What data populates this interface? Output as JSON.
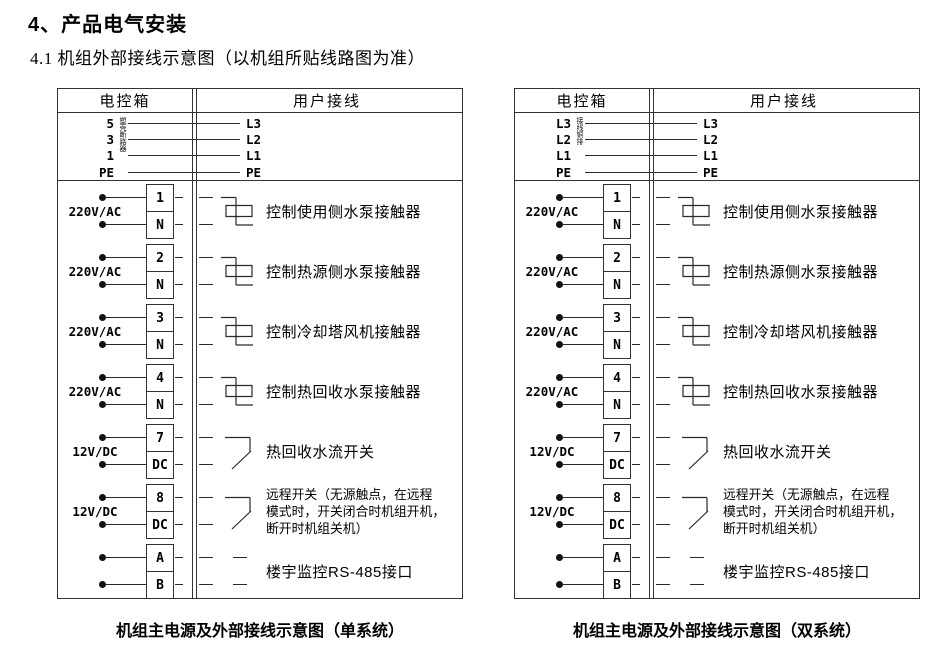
{
  "page": {
    "title": "4、产品电气安装",
    "subtitle": "4.1 机组外部接线示意图（以机组所贴线路图为准）"
  },
  "colors": {
    "line": "#2a2a2a",
    "text": "#000000",
    "background": "#ffffff"
  },
  "diagrams": [
    {
      "name": "single-system",
      "header": {
        "left": "电控箱",
        "right": "用户接线"
      },
      "power_section": {
        "vertical_note": "塑壳断路器",
        "rows": [
          {
            "box_terminal": "5",
            "user_terminal": "L3"
          },
          {
            "box_terminal": "3",
            "user_terminal": "L2"
          },
          {
            "box_terminal": "1",
            "user_terminal": "L1"
          },
          {
            "box_terminal": "PE",
            "user_terminal": "PE"
          }
        ]
      },
      "terminal_rows": [
        {
          "voltage": "220V/AC",
          "terminals": [
            "1",
            "N"
          ],
          "symbol": "contactor",
          "label": "控制使用侧水泵接触器"
        },
        {
          "voltage": "220V/AC",
          "terminals": [
            "2",
            "N"
          ],
          "symbol": "contactor",
          "label": "控制热源侧水泵接触器"
        },
        {
          "voltage": "220V/AC",
          "terminals": [
            "3",
            "N"
          ],
          "symbol": "contactor",
          "label": "控制冷却塔风机接触器"
        },
        {
          "voltage": "220V/AC",
          "terminals": [
            "4",
            "N"
          ],
          "symbol": "contactor",
          "label": "控制热回收水泵接触器"
        },
        {
          "voltage": "12V/DC",
          "terminals": [
            "7",
            "DC"
          ],
          "symbol": "switch",
          "label": "热回收水流开关"
        },
        {
          "voltage": "12V/DC",
          "terminals": [
            "8",
            "DC"
          ],
          "symbol": "switch",
          "label_lines": [
            "远程开关（无源触点，在远程",
            "模式时，开关闭合时机组开机，",
            "断开时机组关机）"
          ]
        },
        {
          "voltage": "",
          "terminals": [
            "A",
            "B"
          ],
          "symbol": "none",
          "label": "楼宇监控RS-485接口"
        }
      ],
      "caption": "机组主电源及外部接线示意图（单系统）"
    },
    {
      "name": "dual-system",
      "header": {
        "left": "电控箱",
        "right": "用户接线"
      },
      "power_section": {
        "vertical_note": "接线铜排",
        "rows": [
          {
            "box_terminal": "L3",
            "user_terminal": "L3"
          },
          {
            "box_terminal": "L2",
            "user_terminal": "L2"
          },
          {
            "box_terminal": "L1",
            "user_terminal": "L1"
          },
          {
            "box_terminal": "PE",
            "user_terminal": "PE"
          }
        ]
      },
      "terminal_rows": [
        {
          "voltage": "220V/AC",
          "terminals": [
            "1",
            "N"
          ],
          "symbol": "contactor",
          "label": "控制使用侧水泵接触器"
        },
        {
          "voltage": "220V/AC",
          "terminals": [
            "2",
            "N"
          ],
          "symbol": "contactor",
          "label": "控制热源侧水泵接触器"
        },
        {
          "voltage": "220V/AC",
          "terminals": [
            "3",
            "N"
          ],
          "symbol": "contactor",
          "label": "控制冷却塔风机接触器"
        },
        {
          "voltage": "220V/AC",
          "terminals": [
            "4",
            "N"
          ],
          "symbol": "contactor",
          "label": "控制热回收水泵接触器"
        },
        {
          "voltage": "12V/DC",
          "terminals": [
            "7",
            "DC"
          ],
          "symbol": "switch",
          "label": "热回收水流开关"
        },
        {
          "voltage": "12V/DC",
          "terminals": [
            "8",
            "DC"
          ],
          "symbol": "switch",
          "label_lines": [
            "远程开关（无源触点，在远程",
            "模式时，开关闭合时机组开机，",
            "断开时机组关机）"
          ]
        },
        {
          "voltage": "",
          "terminals": [
            "A",
            "B"
          ],
          "symbol": "none",
          "label": "楼宇监控RS-485接口"
        }
      ],
      "caption": "机组主电源及外部接线示意图（双系统）"
    }
  ]
}
